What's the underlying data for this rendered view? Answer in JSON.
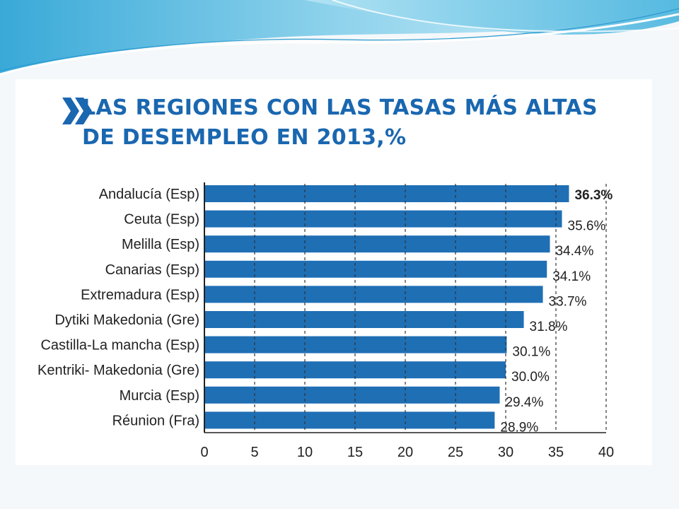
{
  "colors": {
    "bar": "#1f6fb5",
    "title": "#1a67b0",
    "accent_wave": "#29a3d6"
  },
  "icons": [
    "double-chevron-right-icon"
  ],
  "chart_data": {
    "type": "bar",
    "orientation": "horizontal",
    "title_line1": "LAS REGIONES CON LAS TASAS MÁS ALTAS",
    "title_line2": "DE DESEMPLEO EN 2013,%",
    "categories": [
      "Andalucía (Esp)",
      "Ceuta (Esp)",
      "Melilla (Esp)",
      "Canarias (Esp)",
      "Extremadura (Esp)",
      "Dytiki Makedonia (Gre)",
      "Castilla-La mancha (Esp)",
      "Kentriki- Makedonia (Gre)",
      "Murcia (Esp)",
      "Réunion (Fra)"
    ],
    "values": [
      36.3,
      35.6,
      34.4,
      34.1,
      33.7,
      31.8,
      30.1,
      30.0,
      29.4,
      28.9
    ],
    "value_labels": [
      "36.3%",
      "35.6%",
      "34.4%",
      "34.1%",
      "33.7%",
      "31.8%",
      "30.1%",
      "30.0%",
      "29.4%",
      "28.9%"
    ],
    "highlight_index": 0,
    "xlim": [
      0,
      40
    ],
    "xticks": [
      "0",
      "5",
      "10",
      "15",
      "20",
      "25",
      "30",
      "35",
      "40"
    ],
    "grid": "vertical dashed",
    "legend": "none"
  }
}
